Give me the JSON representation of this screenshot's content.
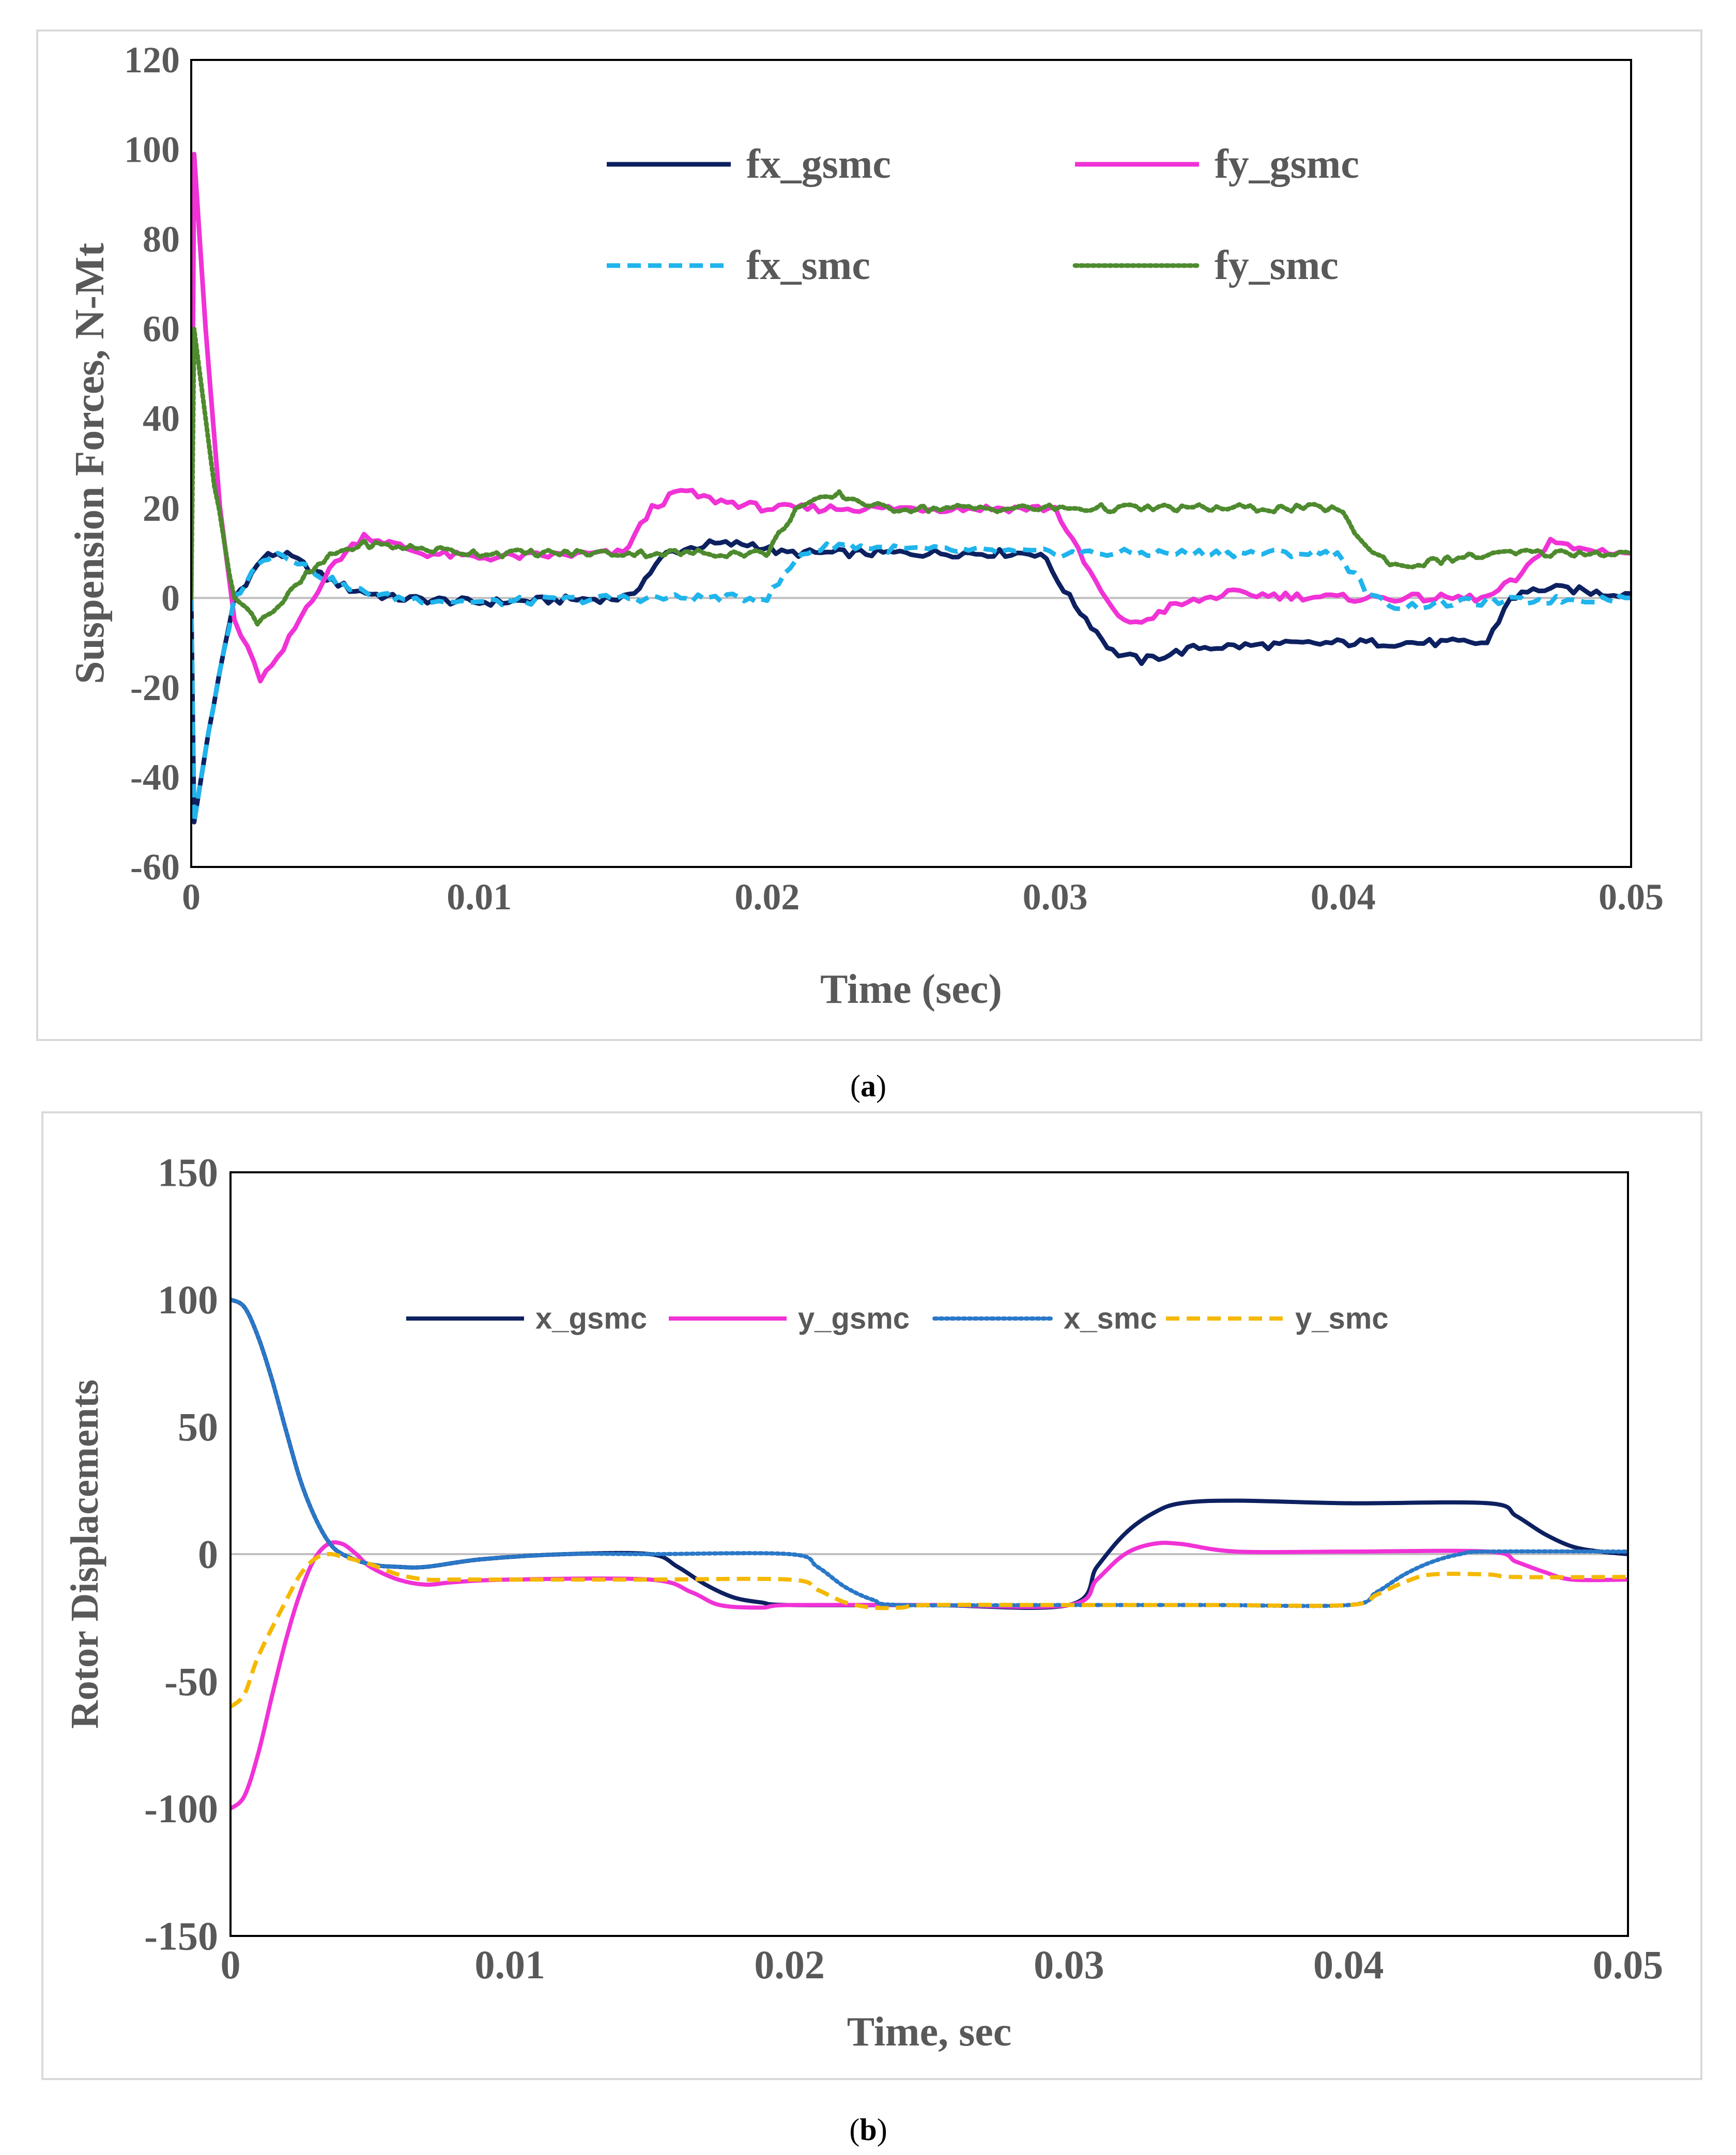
{
  "figure": {
    "caption_a": "a",
    "caption_b": "b"
  },
  "chart_data": [
    {
      "id": "a",
      "type": "line",
      "title": "",
      "xlabel": "Time (sec)",
      "ylabel": "Suspension Forces, N-Mt",
      "xlim": [
        0,
        0.05
      ],
      "ylim": [
        -60,
        120
      ],
      "xticks": [
        0,
        0.01,
        0.02,
        0.03,
        0.04,
        0.05
      ],
      "xtick_labels": [
        "0",
        "0.01",
        "0.02",
        "0.03",
        "0.04",
        "0.05"
      ],
      "yticks": [
        -60,
        -40,
        -20,
        0,
        20,
        40,
        60,
        80,
        100,
        120
      ],
      "ytick_labels": [
        "-60",
        "-40",
        "-20",
        "0",
        "20",
        "40",
        "60",
        "80",
        "100",
        "120"
      ],
      "zero_line": true,
      "legend_position": "top-right",
      "series": [
        {
          "name": "fx_gsmc",
          "color": "#0d2060",
          "dash": "solid",
          "noisy": true,
          "points": [
            [
              0,
              0
            ],
            [
              0.0001,
              -50
            ],
            [
              0.0006,
              -30
            ],
            [
              0.0015,
              0
            ],
            [
              0.0025,
              9
            ],
            [
              0.003,
              10
            ],
            [
              0.0035,
              9
            ],
            [
              0.0045,
              5
            ],
            [
              0.0055,
              2
            ],
            [
              0.007,
              0
            ],
            [
              0.01,
              -1
            ],
            [
              0.015,
              0
            ],
            [
              0.0152,
              0
            ],
            [
              0.0165,
              10
            ],
            [
              0.018,
              12
            ],
            [
              0.0195,
              12
            ],
            [
              0.0205,
              10
            ],
            [
              0.025,
              10
            ],
            [
              0.0295,
              10
            ],
            [
              0.0305,
              0
            ],
            [
              0.032,
              -12
            ],
            [
              0.033,
              -14
            ],
            [
              0.035,
              -11
            ],
            [
              0.04,
              -10
            ],
            [
              0.045,
              -10
            ],
            [
              0.0458,
              0
            ],
            [
              0.0468,
              2
            ],
            [
              0.0478,
              2
            ],
            [
              0.049,
              1
            ],
            [
              0.05,
              1
            ]
          ]
        },
        {
          "name": "fy_gsmc",
          "color": "#f032d6",
          "dash": "solid",
          "noisy": true,
          "points": [
            [
              0,
              0
            ],
            [
              0.0001,
              99
            ],
            [
              0.0005,
              60
            ],
            [
              0.001,
              20
            ],
            [
              0.0015,
              -5
            ],
            [
              0.0024,
              -18
            ],
            [
              0.003,
              -14
            ],
            [
              0.004,
              -2
            ],
            [
              0.005,
              8
            ],
            [
              0.006,
              14
            ],
            [
              0.0065,
              13
            ],
            [
              0.008,
              10
            ],
            [
              0.01,
              9
            ],
            [
              0.015,
              10
            ],
            [
              0.016,
              20
            ],
            [
              0.017,
              24
            ],
            [
              0.018,
              22
            ],
            [
              0.02,
              20
            ],
            [
              0.025,
              20
            ],
            [
              0.03,
              20
            ],
            [
              0.031,
              8
            ],
            [
              0.032,
              -3
            ],
            [
              0.0328,
              -6
            ],
            [
              0.034,
              -2
            ],
            [
              0.036,
              1
            ],
            [
              0.04,
              0
            ],
            [
              0.045,
              0
            ],
            [
              0.0462,
              5
            ],
            [
              0.0472,
              13
            ],
            [
              0.048,
              11
            ],
            [
              0.05,
              10
            ]
          ]
        },
        {
          "name": "fx_smc",
          "color": "#1fb4ec",
          "dash": "dashed",
          "noisy": true,
          "points": [
            [
              0,
              0
            ],
            [
              0.0001,
              -50
            ],
            [
              0.0006,
              -30
            ],
            [
              0.0015,
              0
            ],
            [
              0.0025,
              9
            ],
            [
              0.003,
              10
            ],
            [
              0.0035,
              9
            ],
            [
              0.0045,
              5
            ],
            [
              0.0055,
              2
            ],
            [
              0.007,
              0
            ],
            [
              0.01,
              -1
            ],
            [
              0.015,
              0
            ],
            [
              0.02,
              0
            ],
            [
              0.0212,
              10
            ],
            [
              0.0225,
              12
            ],
            [
              0.024,
              11
            ],
            [
              0.03,
              10
            ],
            [
              0.035,
              10
            ],
            [
              0.0398,
              10
            ],
            [
              0.041,
              0
            ],
            [
              0.042,
              -2
            ],
            [
              0.044,
              -1
            ],
            [
              0.05,
              0
            ]
          ]
        },
        {
          "name": "fy_smc",
          "color": "#4e8a2e",
          "dash": "dotted",
          "noisy": true,
          "points": [
            [
              0,
              0
            ],
            [
              0.0001,
              60
            ],
            [
              0.0008,
              25
            ],
            [
              0.0015,
              0
            ],
            [
              0.0023,
              -5
            ],
            [
              0.003,
              -2
            ],
            [
              0.004,
              5
            ],
            [
              0.005,
              10
            ],
            [
              0.006,
              12
            ],
            [
              0.008,
              11
            ],
            [
              0.01,
              10
            ],
            [
              0.015,
              10
            ],
            [
              0.02,
              10
            ],
            [
              0.021,
              20
            ],
            [
              0.0225,
              23
            ],
            [
              0.024,
              20
            ],
            [
              0.03,
              20
            ],
            [
              0.035,
              20
            ],
            [
              0.0398,
              20
            ],
            [
              0.041,
              10
            ],
            [
              0.042,
              7
            ],
            [
              0.044,
              9
            ],
            [
              0.046,
              10
            ],
            [
              0.05,
              10
            ]
          ]
        }
      ]
    },
    {
      "id": "b",
      "type": "line",
      "title": "",
      "xlabel": "Time, sec",
      "ylabel": "Rotor Displacements",
      "xlim": [
        0,
        0.05
      ],
      "ylim": [
        -150,
        150
      ],
      "xticks": [
        0,
        0.01,
        0.02,
        0.03,
        0.04,
        0.05
      ],
      "xtick_labels": [
        "0",
        "0.01",
        "0.02",
        "0.03",
        "0.04",
        "0.05"
      ],
      "yticks": [
        -150,
        -100,
        -50,
        0,
        50,
        100,
        150
      ],
      "ytick_labels": [
        "-150",
        "-100",
        "-50",
        "0",
        "50",
        "100",
        "150"
      ],
      "zero_line": true,
      "legend_position": "top",
      "series": [
        {
          "name": "x_gsmc",
          "color": "#0d2060",
          "dash": "solid",
          "noisy": false,
          "points": [
            [
              0,
              100
            ],
            [
              0.0005,
              97
            ],
            [
              0.001,
              85
            ],
            [
              0.0015,
              68
            ],
            [
              0.002,
              48
            ],
            [
              0.0025,
              29
            ],
            [
              0.003,
              15
            ],
            [
              0.0035,
              5
            ],
            [
              0.004,
              0
            ],
            [
              0.005,
              -4
            ],
            [
              0.006,
              -5
            ],
            [
              0.007,
              -5
            ],
            [
              0.009,
              -2
            ],
            [
              0.012,
              0
            ],
            [
              0.015,
              0
            ],
            [
              0.016,
              -5
            ],
            [
              0.017,
              -12
            ],
            [
              0.018,
              -17
            ],
            [
              0.019,
              -19
            ],
            [
              0.02,
              -20
            ],
            [
              0.025,
              -20
            ],
            [
              0.03,
              -20
            ],
            [
              0.031,
              -5
            ],
            [
              0.032,
              8
            ],
            [
              0.033,
              16
            ],
            [
              0.034,
              20
            ],
            [
              0.036,
              21
            ],
            [
              0.04,
              20
            ],
            [
              0.045,
              20
            ],
            [
              0.046,
              15
            ],
            [
              0.047,
              8
            ],
            [
              0.048,
              3
            ],
            [
              0.049,
              1
            ],
            [
              0.05,
              0
            ]
          ]
        },
        {
          "name": "y_gsmc",
          "color": "#f032d6",
          "dash": "solid",
          "noisy": false,
          "points": [
            [
              0,
              -100
            ],
            [
              0.0005,
              -95
            ],
            [
              0.001,
              -78
            ],
            [
              0.0015,
              -55
            ],
            [
              0.002,
              -33
            ],
            [
              0.0025,
              -15
            ],
            [
              0.003,
              -2
            ],
            [
              0.0035,
              4
            ],
            [
              0.004,
              4
            ],
            [
              0.0045,
              0
            ],
            [
              0.005,
              -5
            ],
            [
              0.006,
              -10
            ],
            [
              0.007,
              -12
            ],
            [
              0.008,
              -11
            ],
            [
              0.01,
              -10
            ],
            [
              0.015,
              -10
            ],
            [
              0.0165,
              -15
            ],
            [
              0.0175,
              -20
            ],
            [
              0.019,
              -21
            ],
            [
              0.02,
              -20
            ],
            [
              0.025,
              -20
            ],
            [
              0.03,
              -20
            ],
            [
              0.031,
              -10
            ],
            [
              0.032,
              0
            ],
            [
              0.033,
              4
            ],
            [
              0.034,
              4
            ],
            [
              0.036,
              1
            ],
            [
              0.04,
              1
            ],
            [
              0.045,
              1
            ],
            [
              0.046,
              -3
            ],
            [
              0.047,
              -7
            ],
            [
              0.048,
              -10
            ],
            [
              0.05,
              -10
            ]
          ]
        },
        {
          "name": "x_smc",
          "color": "#2a78c8",
          "dash": "dotted",
          "noisy": false,
          "points": [
            [
              0,
              100
            ],
            [
              0.0005,
              97
            ],
            [
              0.001,
              85
            ],
            [
              0.0015,
              68
            ],
            [
              0.002,
              48
            ],
            [
              0.0025,
              29
            ],
            [
              0.003,
              15
            ],
            [
              0.0035,
              5
            ],
            [
              0.004,
              0
            ],
            [
              0.005,
              -4
            ],
            [
              0.006,
              -5
            ],
            [
              0.007,
              -5
            ],
            [
              0.009,
              -2
            ],
            [
              0.012,
              0
            ],
            [
              0.015,
              0
            ],
            [
              0.02,
              0
            ],
            [
              0.021,
              -5
            ],
            [
              0.022,
              -13
            ],
            [
              0.023,
              -18
            ],
            [
              0.024,
              -20
            ],
            [
              0.03,
              -20
            ],
            [
              0.035,
              -20
            ],
            [
              0.04,
              -20
            ],
            [
              0.041,
              -15
            ],
            [
              0.042,
              -8
            ],
            [
              0.043,
              -3
            ],
            [
              0.044,
              0
            ],
            [
              0.045,
              1
            ],
            [
              0.05,
              1
            ]
          ]
        },
        {
          "name": "y_smc",
          "color": "#f5b800",
          "dash": "dashed",
          "noisy": false,
          "points": [
            [
              0,
              -60
            ],
            [
              0.0005,
              -55
            ],
            [
              0.001,
              -40
            ],
            [
              0.002,
              -18
            ],
            [
              0.0025,
              -8
            ],
            [
              0.003,
              -2
            ],
            [
              0.0035,
              0
            ],
            [
              0.004,
              -1
            ],
            [
              0.005,
              -4
            ],
            [
              0.006,
              -8
            ],
            [
              0.007,
              -10
            ],
            [
              0.008,
              -10
            ],
            [
              0.01,
              -10
            ],
            [
              0.015,
              -10
            ],
            [
              0.02,
              -10
            ],
            [
              0.021,
              -14
            ],
            [
              0.022,
              -19
            ],
            [
              0.023,
              -21
            ],
            [
              0.024,
              -21
            ],
            [
              0.025,
              -20
            ],
            [
              0.03,
              -20
            ],
            [
              0.035,
              -20
            ],
            [
              0.04,
              -20
            ],
            [
              0.041,
              -16
            ],
            [
              0.042,
              -11
            ],
            [
              0.043,
              -8
            ],
            [
              0.045,
              -8
            ],
            [
              0.046,
              -9
            ],
            [
              0.05,
              -9
            ]
          ]
        }
      ]
    }
  ]
}
